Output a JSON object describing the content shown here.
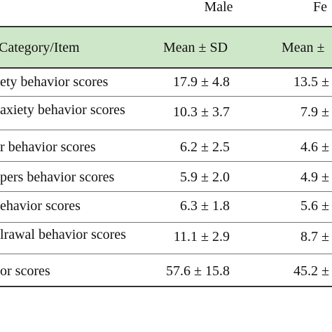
{
  "header": {
    "groups": [
      "Male",
      "Fe"
    ]
  },
  "table": {
    "columns": [
      "Category/Item",
      "Mean ± SD",
      "Mean ±"
    ],
    "rows": [
      [
        "ety behavior scores",
        "17.9 ± 4.8",
        "13.5 ±"
      ],
      [
        "axiety behavior scores",
        "10.3 ± 3.7",
        "7.9 ±"
      ],
      [
        "r behavior scores",
        "6.2 ± 2.5",
        "4.6 ±"
      ],
      [
        "pers behavior scores",
        "5.9 ± 2.0",
        "4.9 ±"
      ],
      [
        "ehavior scores",
        "6.3 ± 1.8",
        "5.6 ±"
      ],
      [
        "lrawal behavior scores",
        "11.1 ± 2.9",
        "8.7 ±"
      ],
      [
        "or scores",
        "57.6 ± 15.8",
        "45.2 ±"
      ]
    ]
  }
}
